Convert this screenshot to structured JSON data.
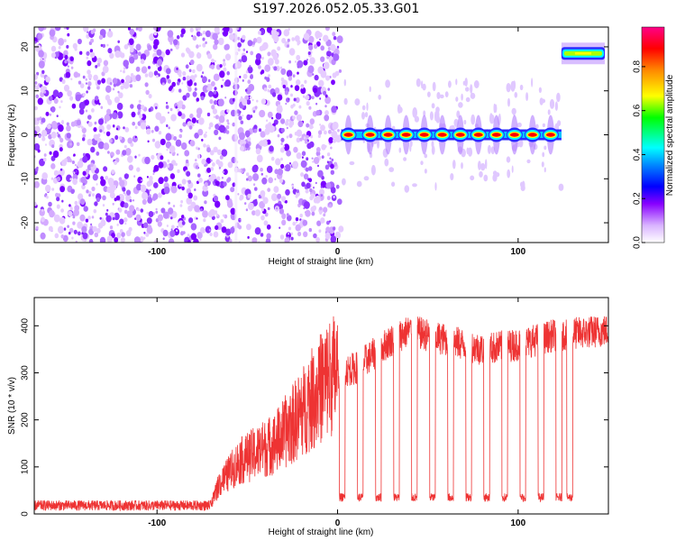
{
  "figure": {
    "title": "S197.2026.052.05.33.G01"
  },
  "chart_data": [
    {
      "type": "heatmap",
      "title": "S197.2026.052.05.33.G01",
      "xlabel": "Height of straight line (km)",
      "ylabel": "Frequency (Hz)",
      "xlim": [
        -168,
        150
      ],
      "ylim": [
        -24.5,
        24.5
      ],
      "x_ticks": [
        -100,
        0,
        100
      ],
      "x_tick_labels": [
        "-100",
        "0",
        "100"
      ],
      "y_ticks": [
        20,
        10,
        0,
        -10,
        -20
      ],
      "y_tick_labels": [
        "20",
        "10",
        "0",
        "-10",
        "-20"
      ],
      "background_noise": {
        "x_range": [
          -168,
          2
        ],
        "amplitude_range": [
          0.0,
          0.25
        ]
      },
      "tone_segments": [
        {
          "x_start": 2,
          "x_end": 124,
          "frequency_hz": 0,
          "peak_amplitude": 0.98,
          "pulse_centers_km": [
            6,
            18,
            28,
            38,
            48,
            58,
            68,
            78,
            88,
            98,
            108,
            118
          ]
        },
        {
          "x_start": 124,
          "x_end": 148,
          "frequency_hz": 18.5,
          "peak_amplitude": 0.72
        }
      ],
      "colorbar": {
        "label": "Normalized spectral amplitude",
        "range": [
          0.0,
          0.98
        ],
        "ticks": [
          0.0,
          0.2,
          0.4,
          0.6,
          0.8
        ],
        "tick_labels": [
          "0.0",
          "0.2",
          "0.4",
          "0.6",
          "0.8"
        ],
        "colors": [
          "#ffffff",
          "#8800ff",
          "#0000ff",
          "#00ffff",
          "#00ff00",
          "#ffff00",
          "#ff8800",
          "#ff0000",
          "#ff0088"
        ]
      }
    },
    {
      "type": "line",
      "xlabel": "Height of straight line (km)",
      "ylabel": "SNR (10 * v/v)",
      "xlim": [
        -168,
        150
      ],
      "ylim": [
        0,
        460
      ],
      "x_ticks": [
        -100,
        0,
        100
      ],
      "x_tick_labels": [
        "-100",
        "0",
        "100"
      ],
      "y_ticks": [
        0,
        100,
        200,
        300,
        400
      ],
      "y_tick_labels": [
        "0",
        "100",
        "200",
        "300",
        "400"
      ],
      "series": [
        {
          "name": "SNR",
          "color": "#ee3333",
          "envelope_x": [
            -168,
            -70,
            -66,
            -55,
            -45,
            -35,
            -25,
            -15,
            -5,
            0,
            10,
            20,
            30,
            40,
            60,
            80,
            100,
            120,
            150
          ],
          "envelope_y": [
            18,
            20,
            60,
            110,
            130,
            150,
            190,
            240,
            290,
            300,
            310,
            340,
            370,
            390,
            370,
            350,
            360,
            380,
            390
          ],
          "dips_to_low_x": [
            1,
            11,
            21,
            31,
            41,
            51,
            61,
            71,
            81,
            91,
            101,
            111,
            121,
            127
          ],
          "dip_level": 35
        }
      ]
    }
  ]
}
